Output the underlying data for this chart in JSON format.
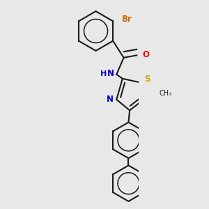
{
  "bg_color": "#e8e8e8",
  "line_color": "#1a1a1a",
  "bond_lw": 1.5,
  "dbo": 0.055,
  "atom_colors": {
    "Br": "#cc6600",
    "O": "#ff0000",
    "N": "#0000cc",
    "S": "#ccaa00",
    "C": "#1a1a1a"
  },
  "font_size": 8.5
}
